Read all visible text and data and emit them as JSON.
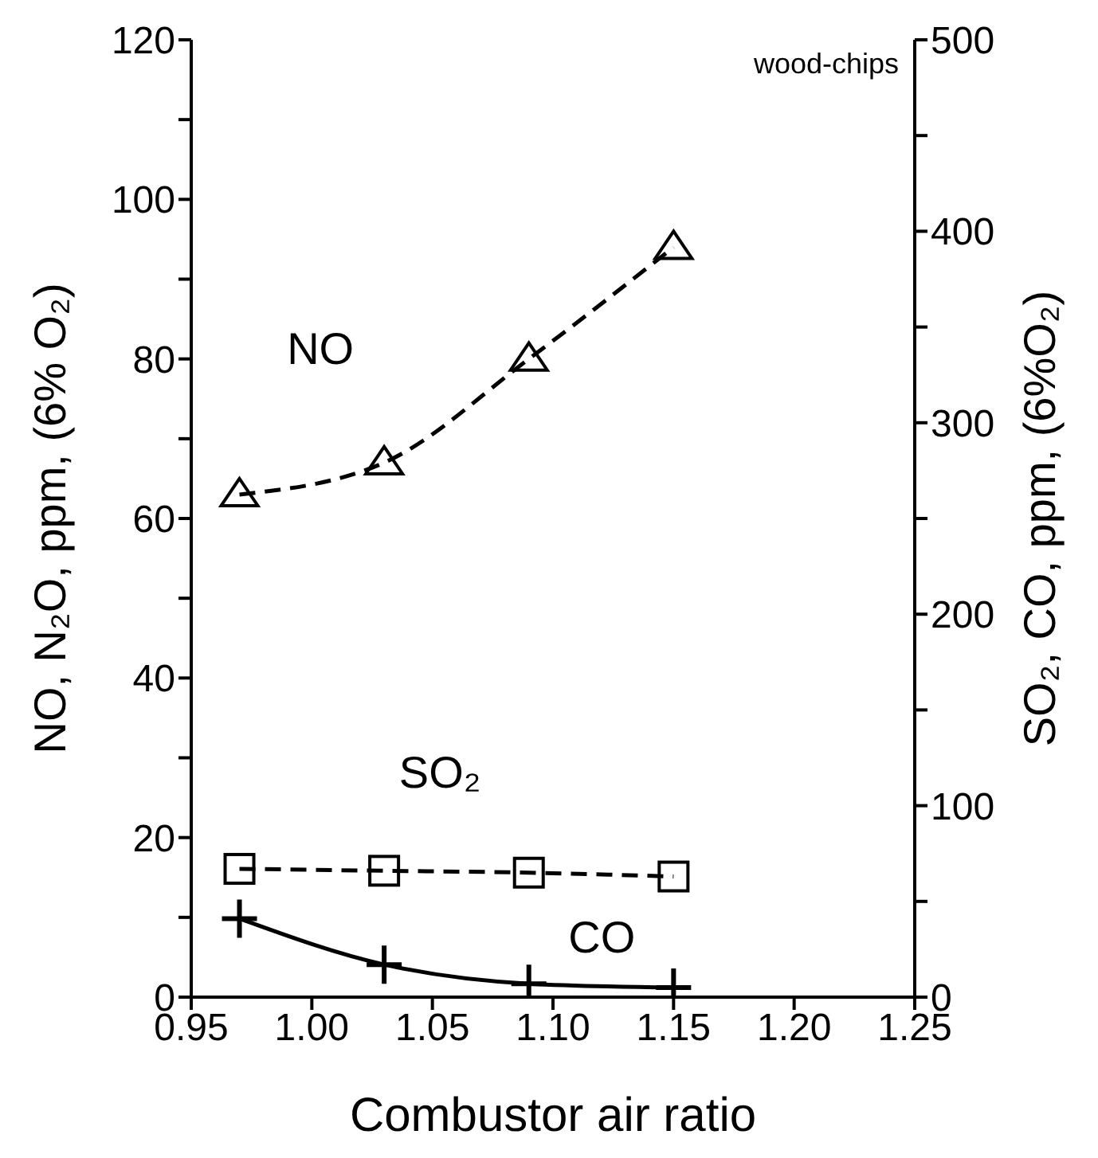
{
  "chart_data": {
    "type": "line",
    "xlabel": "Combustor air ratio",
    "ylabel": "NO, N₂O, ppm, (6% O₂)",
    "y2label": "SO₂, CO, ppm, (6%O₂)",
    "annotations": [
      "wood-chips"
    ],
    "xlim": [
      0.95,
      1.25
    ],
    "xticks": [
      {
        "value": 0.95,
        "label": "0.95"
      },
      {
        "value": 1.0,
        "label": "1.00"
      },
      {
        "value": 1.05,
        "label": "1.05"
      },
      {
        "value": 1.1,
        "label": "1.10"
      },
      {
        "value": 1.15,
        "label": "1.15"
      },
      {
        "value": 1.2,
        "label": "1.20"
      },
      {
        "value": 1.25,
        "label": "1.25"
      }
    ],
    "ylim": [
      0,
      120
    ],
    "yticks": [
      0,
      {
        "value": 10,
        "label": null
      },
      20,
      {
        "value": 30,
        "label": null
      },
      40,
      {
        "value": 50,
        "label": null
      },
      60,
      {
        "value": 70,
        "label": null
      },
      80,
      {
        "value": 90,
        "label": null
      },
      100,
      {
        "value": 110,
        "label": null
      },
      120
    ],
    "y2lim": [
      0,
      500
    ],
    "y2ticks": [
      0,
      {
        "value": 50,
        "label": null
      },
      100,
      {
        "value": 150,
        "label": null
      },
      200,
      {
        "value": 250,
        "label": null
      },
      300,
      {
        "value": 350,
        "label": null
      },
      400,
      {
        "value": 450,
        "label": null
      },
      500
    ],
    "grid": false,
    "legend": false,
    "x": [
      0.97,
      1.03,
      1.09,
      1.15
    ],
    "series": [
      {
        "name": "NO",
        "color": "#000000",
        "values": [
          63,
          67,
          80,
          94
        ],
        "marker": "triangle",
        "line_style": "dashed"
      },
      {
        "name": "SO₂",
        "color": "#000000",
        "values": [
          67,
          66,
          65,
          63
        ],
        "axis": "y2",
        "marker": "square",
        "line_style": "dashed"
      },
      {
        "name": "CO",
        "color": "#000000",
        "values": [
          41,
          17,
          7,
          5
        ],
        "axis": "y2",
        "marker": "cross",
        "line_style": "solid"
      }
    ]
  }
}
